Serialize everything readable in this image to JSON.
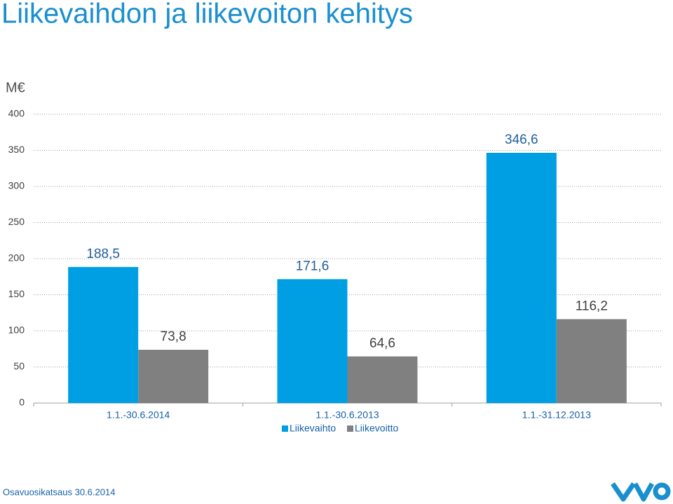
{
  "chart_data": {
    "type": "bar",
    "title": "Liikevaihdon ja liikevoiton kehitys",
    "y_label": "M€",
    "categories": [
      "1.1.-30.6.2014",
      "1.1.-30.6.2013",
      "1.1.-31.12.2013"
    ],
    "series": [
      {
        "name": "Liikevaihto",
        "color": "#009fe3",
        "values": [
          188.5,
          171.6,
          346.6
        ],
        "value_labels": [
          "188,5",
          "171,6",
          "346,6"
        ]
      },
      {
        "name": "Liikevoitto",
        "color": "#808080",
        "values": [
          73.8,
          64.6,
          116.2
        ],
        "value_labels": [
          "73,8",
          "64,6",
          "116,2"
        ]
      }
    ],
    "ylim": [
      0,
      400
    ],
    "yticks": [
      0,
      50,
      100,
      150,
      200,
      250,
      300,
      350,
      400
    ],
    "grid": true,
    "legend": "bottom"
  },
  "footer": "Osavuosikatsaus 30.6.2014"
}
